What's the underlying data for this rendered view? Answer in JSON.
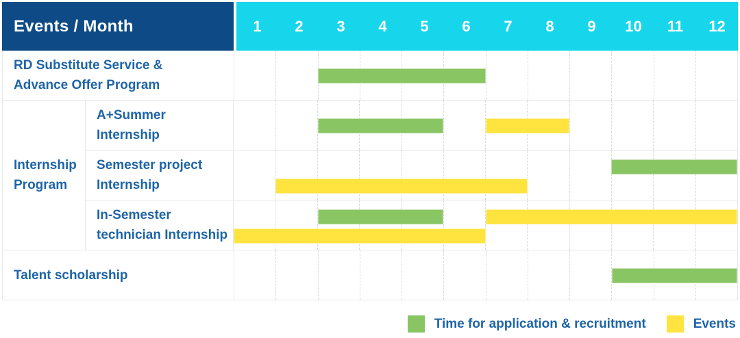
{
  "header": {
    "title": "Events / Month",
    "months": [
      "1",
      "2",
      "3",
      "4",
      "5",
      "6",
      "7",
      "8",
      "9",
      "10",
      "11",
      "12"
    ]
  },
  "colors": {
    "header_bg": "#0e4b86",
    "months_bg": "#17d6ec",
    "header_text": "#ffffff",
    "label_text": "#1e64a6",
    "application": "#8ac563",
    "event": "#ffe33e",
    "grid_solid": "#e7e7e7",
    "grid_dashed": "#d9d9d9"
  },
  "chart_data": {
    "type": "gantt",
    "x_unit": "month",
    "x_range": [
      1,
      12
    ],
    "grid": true,
    "legend_position": "bottom-right",
    "group_labels": [
      {
        "name": "Internship Program",
        "lines": [
          "Internship",
          "Program"
        ]
      }
    ],
    "rows": [
      {
        "label": "RD Substitute Service & Advance Offer Program",
        "label_lines": [
          "RD Substitute Service &",
          "Advance Offer Program"
        ],
        "group": "",
        "bars": [
          {
            "kind": "application",
            "start_month": 3,
            "end_month": 6,
            "band": "single"
          }
        ]
      },
      {
        "label": "A+Summer Internship",
        "label_lines": [
          "A+Summer",
          "Internship"
        ],
        "group": "Internship Program",
        "bars": [
          {
            "kind": "application",
            "start_month": 3,
            "end_month": 5,
            "band": "single"
          },
          {
            "kind": "event",
            "start_month": 7,
            "end_month": 8,
            "band": "single"
          }
        ]
      },
      {
        "label": "Semester project Internship",
        "label_lines": [
          "Semester project",
          "Internship"
        ],
        "group": "Internship Program",
        "bars": [
          {
            "kind": "application",
            "start_month": 10,
            "end_month": 12,
            "band": "top"
          },
          {
            "kind": "event",
            "start_month": 2,
            "end_month": 7,
            "band": "bottom"
          }
        ]
      },
      {
        "label": "In-Semester technician Internship",
        "label_lines": [
          "In-Semester",
          "technician Internship"
        ],
        "group": "Internship Program",
        "bars": [
          {
            "kind": "application",
            "start_month": 3,
            "end_month": 5,
            "band": "top"
          },
          {
            "kind": "event",
            "start_month": 7,
            "end_month": 12,
            "band": "top"
          },
          {
            "kind": "event",
            "start_month": 1,
            "end_month": 6,
            "band": "bottom"
          }
        ]
      },
      {
        "label": "Talent scholarship",
        "label_lines": [
          "Talent scholarship"
        ],
        "group": "",
        "bars": [
          {
            "kind": "application",
            "start_month": 10,
            "end_month": 12,
            "band": "single"
          }
        ]
      }
    ]
  },
  "legend": {
    "items": [
      {
        "label": "Time for application & recruitment",
        "kind": "application"
      },
      {
        "label": "Events",
        "kind": "event"
      }
    ]
  }
}
